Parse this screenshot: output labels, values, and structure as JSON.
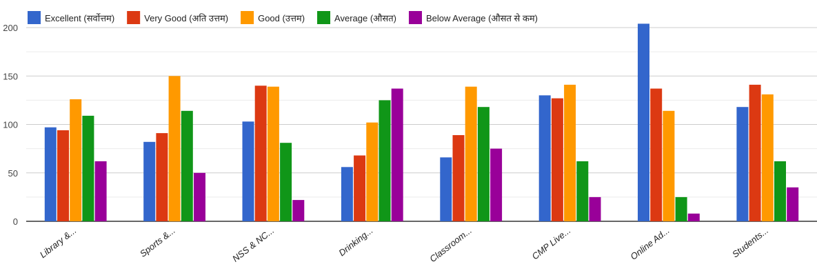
{
  "chart_data": {
    "type": "bar",
    "categories": [
      "Library &...",
      "Sports &...",
      "NSS & NC...",
      "Drinking...",
      "Classroom...",
      "CMP Live...",
      "Online Ad...",
      "Students..."
    ],
    "series": [
      {
        "name": "Excellent (सर्वोत्तम)",
        "color": "#3366cc",
        "values": [
          97,
          82,
          103,
          56,
          66,
          130,
          204,
          118
        ]
      },
      {
        "name": "Very Good (अति उत्तम)",
        "color": "#dc3912",
        "values": [
          94,
          91,
          140,
          68,
          89,
          127,
          137,
          141
        ]
      },
      {
        "name": "Good (उत्तम)",
        "color": "#ff9900",
        "values": [
          126,
          150,
          139,
          102,
          139,
          141,
          114,
          131
        ]
      },
      {
        "name": "Average (औसत)",
        "color": "#109618",
        "values": [
          109,
          114,
          81,
          125,
          118,
          62,
          25,
          62
        ]
      },
      {
        "name": "Below Average (औसत से कम)",
        "color": "#990099",
        "values": [
          62,
          50,
          22,
          137,
          75,
          25,
          8,
          35
        ]
      }
    ],
    "ylim": [
      0,
      200
    ],
    "yticks": [
      "0",
      "50",
      "100",
      "150",
      "200"
    ],
    "grid": true,
    "legend_position": "top-left"
  }
}
